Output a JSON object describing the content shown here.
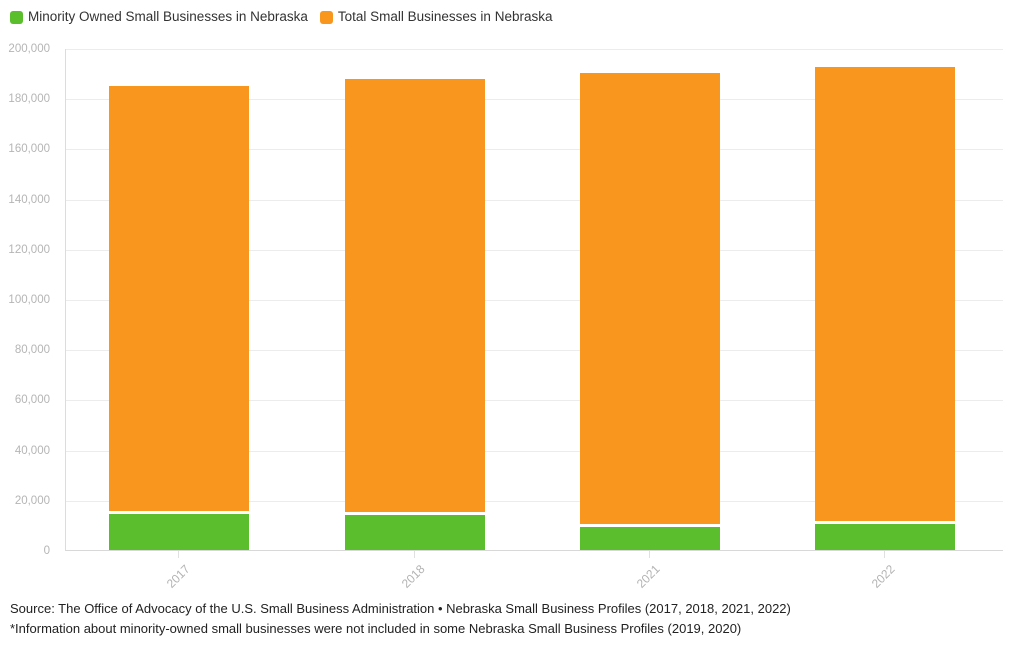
{
  "chart_data": {
    "type": "bar",
    "bar_style": "overlay",
    "categories": [
      "2017",
      "2018",
      "2021",
      "2022"
    ],
    "series": [
      {
        "name": "Minority Owned Small Businesses in Nebraska",
        "color": "#5bbe2c",
        "values": [
          14200,
          14100,
          9000,
          10200
        ]
      },
      {
        "name": "Total Small Businesses in Nebraska",
        "color": "#f8961e",
        "values": [
          184700,
          187500,
          190200,
          192500
        ]
      }
    ],
    "title": "",
    "xlabel": "",
    "ylabel": "",
    "ylim": [
      0,
      200000
    ],
    "ytick_step": 20000,
    "ytick_labels": [
      "0",
      "20,000",
      "40,000",
      "60,000",
      "80,000",
      "100,000",
      "120,000",
      "140,000",
      "160,000",
      "180,000",
      "200,000"
    ],
    "grid": "horizontal",
    "legend_position": "top-left",
    "gridline_color": "#ececec",
    "axis_color": "#d8d8d8",
    "tick_label_color": "#b5b5b5"
  },
  "source": {
    "line1": "Source: The Office of Advocacy of the U.S. Small Business Administration • Nebraska Small Business Profiles (2017, 2018, 2021, 2022)",
    "line2": "*Information about minority-owned small businesses were not included in some Nebraska Small Business Profiles (2019, 2020)"
  }
}
